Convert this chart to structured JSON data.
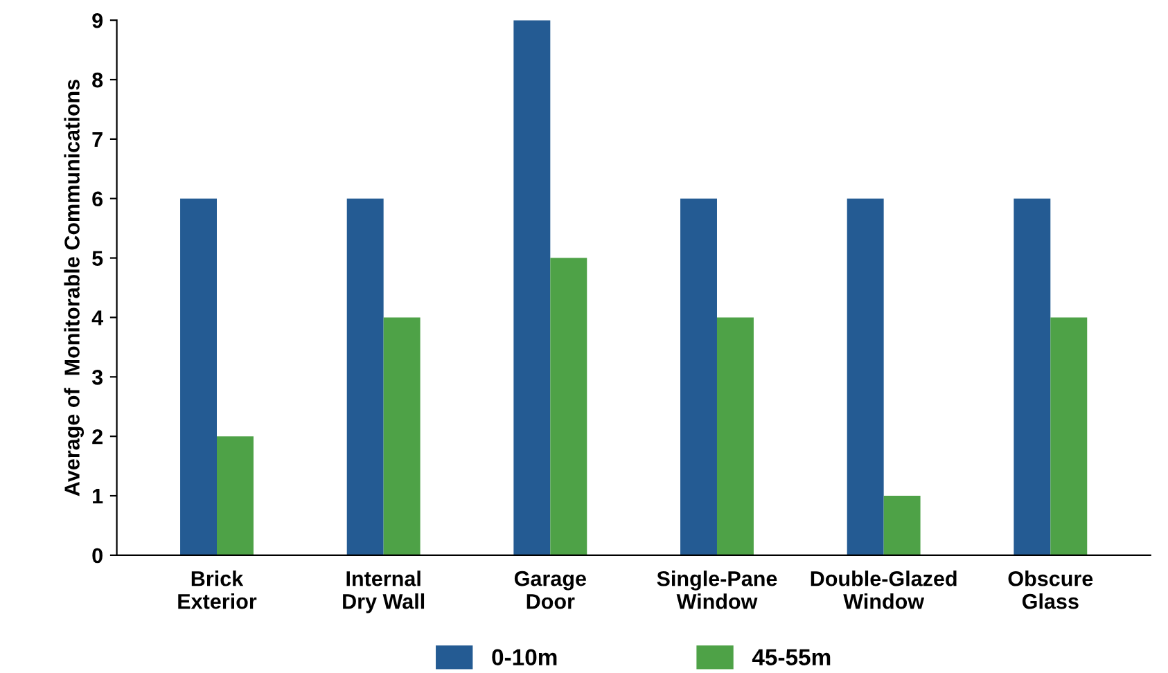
{
  "chart_data": {
    "type": "bar",
    "ylabel": "Average of  Monitorable Communications",
    "categories": [
      "Brick\nExterior",
      "Internal\nDry Wall",
      "Garage\nDoor",
      "Single-Pane\nWindow",
      "Double-Glazed\nWindow",
      "Obscure\nGlass"
    ],
    "series": [
      {
        "name": "0-10m",
        "color": "#245b93",
        "values": [
          6,
          6,
          9,
          6,
          6,
          6
        ]
      },
      {
        "name": "45-55m",
        "color": "#4ea247",
        "values": [
          2,
          4,
          5,
          4,
          1,
          4
        ]
      }
    ],
    "ylim": [
      0,
      9
    ],
    "yticks": [
      0,
      1,
      2,
      3,
      4,
      5,
      6,
      7,
      8,
      9
    ],
    "grid": false,
    "legend": "bottom"
  }
}
